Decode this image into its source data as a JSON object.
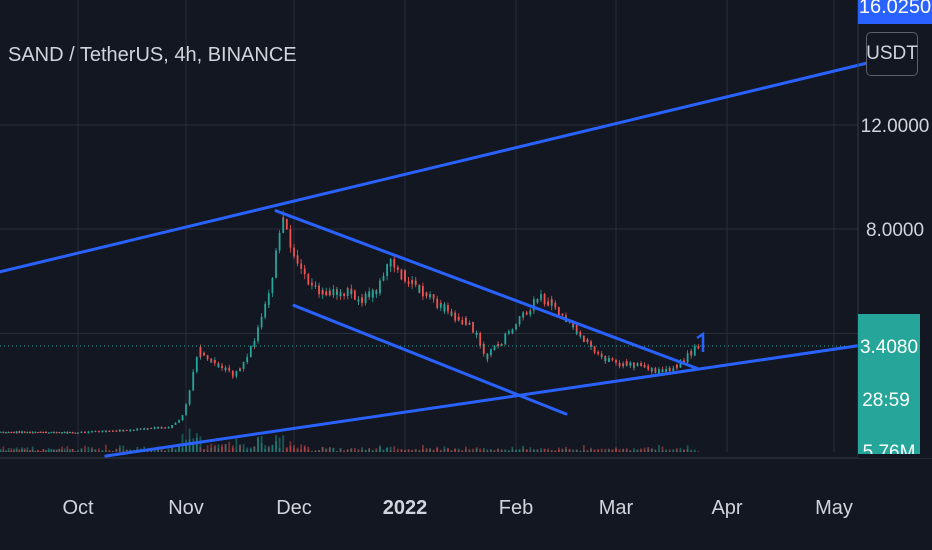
{
  "header": {
    "symbol_title": "SAND / TetherUS, 4h, BINANCE",
    "currency_label": "USDT"
  },
  "price_scale": {
    "top_badge": "16.0250",
    "labels": [
      "12.0000",
      "8.0000"
    ],
    "last_price": "3.4080",
    "countdown": "28:59",
    "volume": "5.76M"
  },
  "colors": {
    "background": "#131722",
    "grid": "#2a2e39",
    "candle_up": "#26a69a",
    "candle_down": "#ef5350",
    "trendline": "#2962ff",
    "price_line": "#26a69a",
    "badge_blue": "#2962ff",
    "badge_green": "#26a69a",
    "text": "#d1d4dc"
  },
  "chart_data": {
    "type": "candlestick",
    "x_axis_labels": [
      "Oct",
      "Nov",
      "Dec",
      "2022",
      "Feb",
      "Mar",
      "Apr",
      "May"
    ],
    "y_ticks": [
      12,
      8,
      3.408
    ],
    "last_price": 3.408,
    "series": [
      {
        "name": "price",
        "x": [
          "2021-09-01",
          "2021-09-15",
          "2021-10-01",
          "2021-10-15",
          "2021-10-28",
          "2021-11-01",
          "2021-11-05",
          "2021-11-10",
          "2021-11-15",
          "2021-11-20",
          "2021-11-25",
          "2021-11-28",
          "2021-12-01",
          "2021-12-05",
          "2021-12-10",
          "2021-12-15",
          "2021-12-20",
          "2021-12-25",
          "2021-12-28",
          "2022-01-03",
          "2022-01-10",
          "2022-01-15",
          "2022-01-20",
          "2022-01-24",
          "2022-01-28",
          "2022-02-02",
          "2022-02-08",
          "2022-02-12",
          "2022-02-18",
          "2022-02-24",
          "2022-03-01",
          "2022-03-07",
          "2022-03-14",
          "2022-03-20",
          "2022-03-24"
        ],
        "values": [
          0.74,
          0.74,
          0.72,
          0.8,
          0.9,
          1.3,
          3.3,
          2.8,
          2.5,
          3.4,
          5.6,
          8.3,
          7.2,
          6.0,
          5.4,
          5.6,
          5.2,
          5.6,
          6.7,
          5.9,
          5.1,
          4.6,
          4.2,
          3.1,
          3.5,
          4.4,
          5.3,
          5.0,
          4.0,
          3.1,
          2.9,
          2.8,
          2.6,
          2.9,
          3.4
        ]
      }
    ],
    "drawings": [
      {
        "name": "rising-line-upper",
        "from": [
          "2021-09-01",
          6.3
        ],
        "to": [
          "2022-05-12",
          14.0
        ]
      },
      {
        "name": "descending-line-upper",
        "from": [
          "2021-11-26",
          8.7
        ],
        "to": [
          "2022-03-24",
          2.7
        ]
      },
      {
        "name": "descending-line-lower",
        "from": [
          "2021-12-01",
          5.0
        ],
        "to": [
          "2022-02-15",
          1.3
        ]
      },
      {
        "name": "rising-support-line",
        "from": [
          "2021-10-09",
          0.0
        ],
        "to": [
          "2022-05-12",
          3.5
        ]
      }
    ],
    "grid": true,
    "volume_panel": true
  }
}
